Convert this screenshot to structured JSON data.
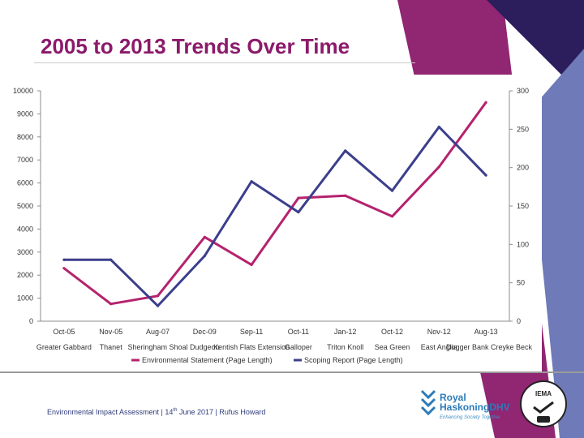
{
  "slide": {
    "title": "2005 to 2013 Trends Over Time"
  },
  "chart_data": {
    "type": "line",
    "title": "2005 to 2013 Trends Over Time",
    "categories": [
      "Greater Gabbard",
      "Thanet",
      "Sheringham Shoal",
      "Dudgeon",
      "Kentish Flats Extension",
      "Galloper",
      "Triton Knoll",
      "Sea Green",
      "East Anglia",
      "Dogger Bank Creyke Beck"
    ],
    "category_dates": [
      "Oct-05",
      "Nov-05",
      "Aug-07",
      "Dec-09",
      "Sep-11",
      "Oct-11",
      "Jan-12",
      "Oct-12",
      "Nov-12",
      "Aug-13"
    ],
    "left_axis": {
      "ylim": [
        0,
        10000
      ],
      "ticks": [
        0,
        1000,
        2000,
        3000,
        4000,
        5000,
        6000,
        7000,
        8000,
        9000,
        10000
      ]
    },
    "right_axis": {
      "ylim": [
        0,
        300
      ],
      "ticks": [
        0,
        50,
        100,
        150,
        200,
        250,
        300
      ]
    },
    "series": [
      {
        "name": "Environmental Statement (Page Length)",
        "axis": "left",
        "color": "#b5226e",
        "values": [
          2300,
          750,
          1100,
          3650,
          2450,
          5350,
          5450,
          4550,
          6700,
          9500
        ]
      },
      {
        "name": "Scoping Report (Page Length)",
        "axis": "right",
        "color": "#3b3f8c",
        "values": [
          80,
          80,
          20,
          85,
          182,
          142,
          222,
          170,
          253,
          190
        ]
      }
    ],
    "legend_position": "bottom",
    "grid": false
  },
  "footer": {
    "text_before": "Environmental Impact Assessment | 14",
    "superscript": "th",
    "text_after": " June 2017 | Rufus Howard"
  },
  "logos": {
    "rhdhv_line1": "Royal",
    "rhdhv_line2": "HaskoningDHV",
    "rhdhv_tagline": "Enhancing Society Together",
    "iema_text": "IEMA"
  },
  "theme": {
    "purple": "#8b1a6b",
    "navy": "#2c1d5c",
    "periwinkle": "#6f7ab8"
  }
}
